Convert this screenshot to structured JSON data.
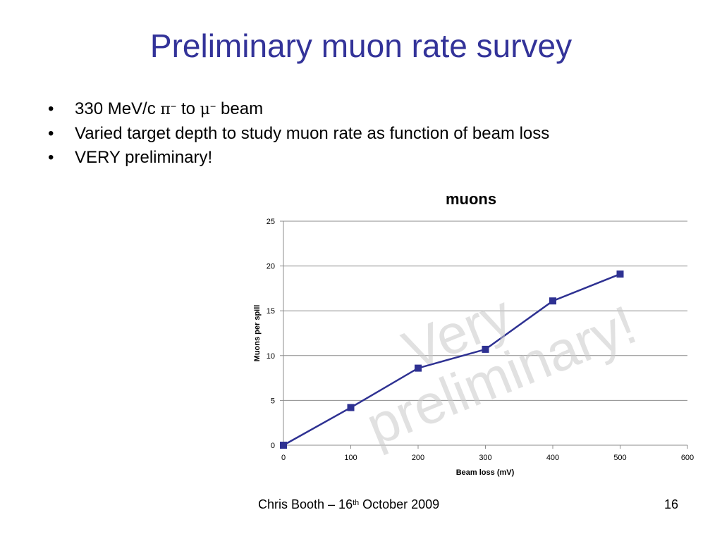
{
  "slide": {
    "title": "Preliminary muon rate survey",
    "bullets": {
      "b1_pre": "330 MeV/c ",
      "b1_pi": "π",
      "b1_pi_sup": "−",
      "b1_to": " to ",
      "b1_mu": "μ",
      "b1_mu_sup": "−",
      "b1_post": " beam",
      "b2": "Varied target depth to study muon rate as function of beam loss",
      "b3": "VERY preliminary!"
    },
    "bullet_char": "•",
    "footer": {
      "pre": "Chris Booth – 16",
      "sup": "th",
      "post": " October  2009",
      "page": "16"
    }
  },
  "chart_data": {
    "type": "line",
    "title": "muons",
    "xlabel": "Beam loss (mV)",
    "ylabel": "Muons per spill",
    "xlim": [
      0,
      600
    ],
    "ylim": [
      0,
      25
    ],
    "xticks": [
      0,
      100,
      200,
      300,
      400,
      500,
      600
    ],
    "yticks": [
      0,
      5,
      10,
      15,
      20,
      25
    ],
    "grid": "horizontal",
    "series_color": "#2e3192",
    "series": [
      {
        "x": [
          0,
          100,
          200,
          300,
          400,
          500
        ],
        "y": [
          0,
          4.2,
          8.6,
          10.7,
          16.1,
          19.1
        ]
      }
    ],
    "watermark": {
      "line1": "Very",
      "line2": "preliminary!"
    }
  }
}
